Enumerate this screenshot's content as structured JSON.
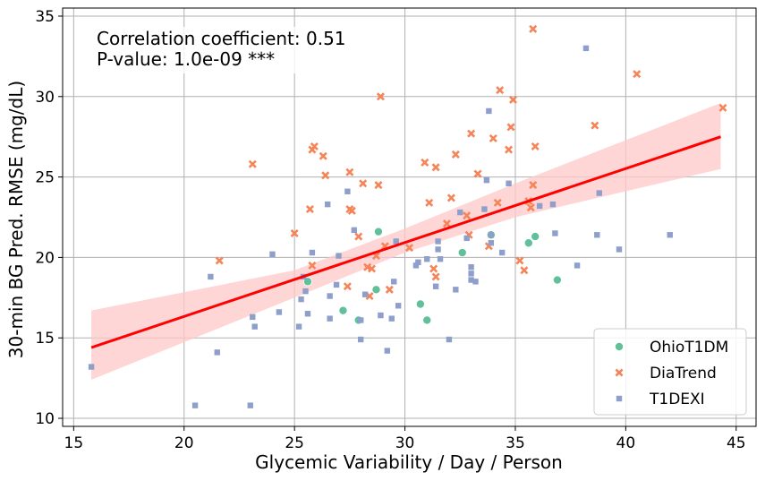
{
  "chart_data": {
    "type": "scatter",
    "xlabel": "Glycemic Variability / Day / Person",
    "ylabel": "30-min BG Pred. RMSE (mg/dL)",
    "xlim": [
      14.5,
      45.9
    ],
    "ylim": [
      9.5,
      35.5
    ],
    "xticks": [
      15,
      20,
      25,
      30,
      35,
      40,
      45
    ],
    "yticks": [
      10,
      15,
      20,
      25,
      30,
      35
    ],
    "grid": true,
    "legend_position": "bottom-right",
    "annotation": {
      "line1": "Correlation coefficient: 0.51",
      "line2": "P-value: 1.0e-09 ***"
    },
    "regression": {
      "color": "#ff0000",
      "band_color": "#ffc8c8",
      "x0": 15.8,
      "y0": 14.4,
      "x1": 44.3,
      "y1": 27.5,
      "band": [
        [
          15.8,
          12.4,
          16.7
        ],
        [
          25.0,
          17.5,
          19.2
        ],
        [
          30.0,
          20.3,
          21.8
        ],
        [
          35.0,
          22.5,
          24.6
        ],
        [
          44.3,
          25.5,
          29.6
        ]
      ]
    },
    "series": [
      {
        "name": "OhioT1DM",
        "marker": "circle",
        "color": "#5fc09a",
        "points": [
          [
            25.6,
            18.5
          ],
          [
            27.2,
            16.7
          ],
          [
            28.7,
            18.0
          ],
          [
            28.8,
            21.6
          ],
          [
            30.7,
            17.1
          ],
          [
            31.0,
            16.1
          ],
          [
            32.6,
            20.3
          ],
          [
            33.9,
            21.4
          ],
          [
            35.6,
            20.9
          ],
          [
            35.9,
            21.3
          ],
          [
            36.9,
            18.6
          ],
          [
            27.9,
            16.1
          ]
        ]
      },
      {
        "name": "DiaTrend",
        "marker": "x",
        "color": "#f58458",
        "points": [
          [
            21.6,
            19.8
          ],
          [
            23.1,
            25.8
          ],
          [
            25.0,
            21.5
          ],
          [
            25.7,
            23.0
          ],
          [
            25.8,
            26.7
          ],
          [
            25.9,
            26.9
          ],
          [
            25.8,
            19.5
          ],
          [
            26.3,
            26.3
          ],
          [
            26.4,
            25.1
          ],
          [
            27.4,
            18.2
          ],
          [
            27.5,
            23.0
          ],
          [
            27.6,
            22.9
          ],
          [
            27.5,
            25.3
          ],
          [
            27.9,
            21.3
          ],
          [
            28.1,
            24.6
          ],
          [
            28.3,
            19.4
          ],
          [
            28.4,
            17.6
          ],
          [
            28.5,
            19.3
          ],
          [
            28.7,
            20.1
          ],
          [
            28.8,
            24.5
          ],
          [
            28.9,
            30.0
          ],
          [
            29.1,
            20.7
          ],
          [
            29.3,
            18.0
          ],
          [
            30.2,
            20.6
          ],
          [
            30.9,
            25.9
          ],
          [
            31.1,
            23.4
          ],
          [
            31.3,
            19.3
          ],
          [
            31.4,
            25.6
          ],
          [
            31.4,
            18.8
          ],
          [
            31.9,
            22.1
          ],
          [
            32.1,
            23.7
          ],
          [
            32.3,
            26.4
          ],
          [
            32.8,
            22.6
          ],
          [
            32.9,
            21.4
          ],
          [
            33.0,
            27.7
          ],
          [
            33.3,
            25.2
          ],
          [
            33.8,
            20.7
          ],
          [
            34.0,
            27.4
          ],
          [
            34.2,
            23.4
          ],
          [
            34.3,
            30.4
          ],
          [
            34.7,
            26.7
          ],
          [
            34.8,
            28.1
          ],
          [
            34.9,
            29.8
          ],
          [
            35.2,
            19.8
          ],
          [
            35.4,
            19.2
          ],
          [
            35.6,
            23.5
          ],
          [
            35.7,
            23.1
          ],
          [
            35.8,
            24.5
          ],
          [
            35.8,
            34.2
          ],
          [
            35.9,
            26.9
          ],
          [
            38.6,
            28.2
          ],
          [
            40.5,
            31.4
          ],
          [
            44.4,
            29.3
          ]
        ]
      },
      {
        "name": "T1DEXI",
        "marker": "square",
        "color": "#8f9fcb",
        "points": [
          [
            15.8,
            13.2
          ],
          [
            20.5,
            10.8
          ],
          [
            21.2,
            18.8
          ],
          [
            21.5,
            14.1
          ],
          [
            23.0,
            10.8
          ],
          [
            23.1,
            16.3
          ],
          [
            23.2,
            15.7
          ],
          [
            24.0,
            20.2
          ],
          [
            24.3,
            16.6
          ],
          [
            25.2,
            15.7
          ],
          [
            25.3,
            17.4
          ],
          [
            25.4,
            18.8
          ],
          [
            25.5,
            17.9
          ],
          [
            25.6,
            16.5
          ],
          [
            25.8,
            20.3
          ],
          [
            26.5,
            23.3
          ],
          [
            26.6,
            17.6
          ],
          [
            26.6,
            16.2
          ],
          [
            26.9,
            18.3
          ],
          [
            27.0,
            20.1
          ],
          [
            27.4,
            24.1
          ],
          [
            27.7,
            21.7
          ],
          [
            28.0,
            16.1
          ],
          [
            28.0,
            14.9
          ],
          [
            28.2,
            17.7
          ],
          [
            28.9,
            16.4
          ],
          [
            29.2,
            14.2
          ],
          [
            29.4,
            16.2
          ],
          [
            29.5,
            18.5
          ],
          [
            29.6,
            21.0
          ],
          [
            29.7,
            17.0
          ],
          [
            30.5,
            19.5
          ],
          [
            30.6,
            19.7
          ],
          [
            31.0,
            19.9
          ],
          [
            31.4,
            18.2
          ],
          [
            31.5,
            20.5
          ],
          [
            31.6,
            19.9
          ],
          [
            32.0,
            14.9
          ],
          [
            32.3,
            18.0
          ],
          [
            32.5,
            22.8
          ],
          [
            32.8,
            21.2
          ],
          [
            33.0,
            18.6
          ],
          [
            33.0,
            19.4
          ],
          [
            33.2,
            18.5
          ],
          [
            33.6,
            23.0
          ],
          [
            33.7,
            24.8
          ],
          [
            33.8,
            29.1
          ],
          [
            33.9,
            20.9
          ],
          [
            33.9,
            21.4
          ],
          [
            34.4,
            20.3
          ],
          [
            34.7,
            24.6
          ],
          [
            36.1,
            23.2
          ],
          [
            36.7,
            23.3
          ],
          [
            36.8,
            21.5
          ],
          [
            37.8,
            19.5
          ],
          [
            38.2,
            33.0
          ],
          [
            38.7,
            21.4
          ],
          [
            38.8,
            24.0
          ],
          [
            39.7,
            20.5
          ],
          [
            42.0,
            21.4
          ],
          [
            33.0,
            19.0
          ],
          [
            31.5,
            21.0
          ]
        ]
      }
    ]
  }
}
